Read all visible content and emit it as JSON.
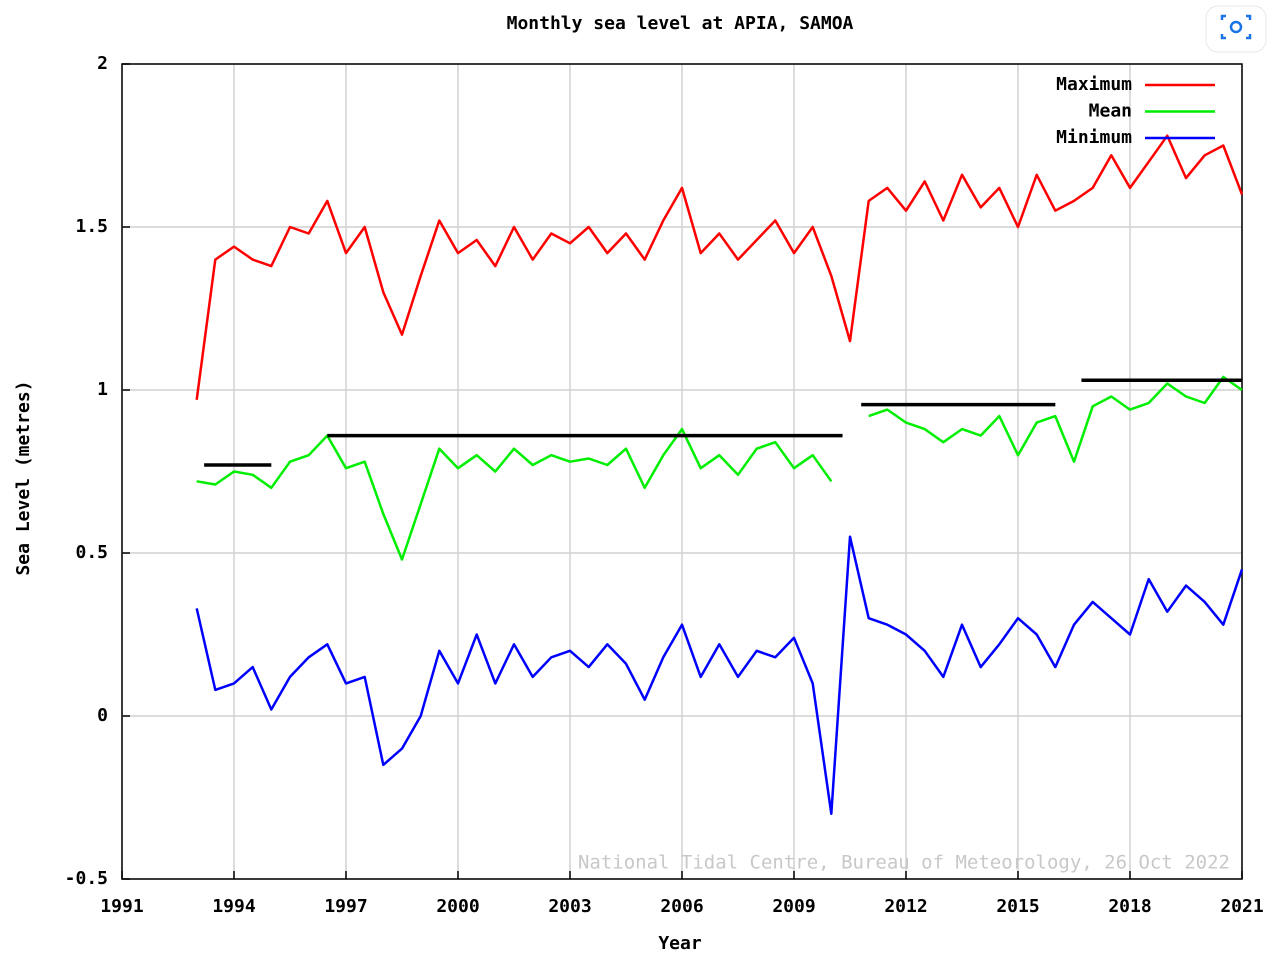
{
  "chart_data": {
    "type": "line",
    "title": "Monthly sea level at APIA, SAMOA",
    "xlabel": "Year",
    "ylabel": "Sea Level (metres)",
    "annotation": "National Tidal Centre, Bureau of Meteorology, 26 Oct 2022",
    "xlim": [
      1991,
      2021
    ],
    "xticks": [
      1991,
      1994,
      1997,
      2000,
      2003,
      2006,
      2009,
      2012,
      2015,
      2018,
      2021
    ],
    "ylim": [
      -0.5,
      2
    ],
    "yticks": [
      -0.5,
      0,
      0.5,
      1,
      1.5,
      2
    ],
    "grid": true,
    "legend": "upper right",
    "x": [
      1993.0,
      1993.5,
      1994.0,
      1994.5,
      1995.0,
      1995.5,
      1996.0,
      1996.5,
      1997.0,
      1997.5,
      1998.0,
      1998.5,
      1999.0,
      1999.5,
      2000.0,
      2000.5,
      2001.0,
      2001.5,
      2002.0,
      2002.5,
      2003.0,
      2003.5,
      2004.0,
      2004.5,
      2005.0,
      2005.5,
      2006.0,
      2006.5,
      2007.0,
      2007.5,
      2008.0,
      2008.5,
      2009.0,
      2009.5,
      2010.0,
      2010.5,
      2011.0,
      2011.5,
      2012.0,
      2012.5,
      2013.0,
      2013.5,
      2014.0,
      2014.5,
      2015.0,
      2015.5,
      2016.0,
      2016.5,
      2017.0,
      2017.5,
      2018.0,
      2018.5,
      2019.0,
      2019.5,
      2020.0,
      2020.5,
      2021.0
    ],
    "series": [
      {
        "name": "Maximum",
        "color": "#ff0000",
        "values": [
          0.97,
          1.4,
          1.44,
          1.4,
          1.38,
          1.5,
          1.48,
          1.58,
          1.42,
          1.5,
          1.3,
          1.17,
          1.35,
          1.52,
          1.42,
          1.46,
          1.38,
          1.5,
          1.4,
          1.48,
          1.45,
          1.5,
          1.42,
          1.48,
          1.4,
          1.52,
          1.62,
          1.42,
          1.48,
          1.4,
          1.46,
          1.52,
          1.42,
          1.5,
          1.35,
          1.15,
          1.58,
          1.62,
          1.55,
          1.64,
          1.52,
          1.66,
          1.56,
          1.62,
          1.5,
          1.66,
          1.55,
          1.58,
          1.62,
          1.72,
          1.62,
          1.7,
          1.78,
          1.65,
          1.72,
          1.75,
          1.6
        ]
      },
      {
        "name": "Mean",
        "color": "#00ee00",
        "values": [
          0.72,
          0.71,
          0.75,
          0.74,
          0.7,
          0.78,
          0.8,
          0.86,
          0.76,
          0.78,
          0.62,
          0.48,
          0.65,
          0.82,
          0.76,
          0.8,
          0.75,
          0.82,
          0.77,
          0.8,
          0.78,
          0.79,
          0.77,
          0.82,
          0.7,
          0.8,
          0.88,
          0.76,
          0.8,
          0.74,
          0.82,
          0.84,
          0.76,
          0.8,
          0.72,
          null,
          0.92,
          0.94,
          0.9,
          0.88,
          0.84,
          0.88,
          0.86,
          0.92,
          0.8,
          0.9,
          0.92,
          0.78,
          0.95,
          0.98,
          0.94,
          0.96,
          1.02,
          0.98,
          0.96,
          1.04,
          1.0
        ]
      },
      {
        "name": "Minimum",
        "color": "#0000ff",
        "values": [
          0.33,
          0.08,
          0.1,
          0.15,
          0.02,
          0.12,
          0.18,
          0.22,
          0.1,
          0.12,
          -0.15,
          -0.1,
          0.0,
          0.2,
          0.1,
          0.25,
          0.1,
          0.22,
          0.12,
          0.18,
          0.2,
          0.15,
          0.22,
          0.16,
          0.05,
          0.18,
          0.28,
          0.12,
          0.22,
          0.12,
          0.2,
          0.18,
          0.24,
          0.1,
          -0.3,
          0.55,
          0.3,
          0.28,
          0.25,
          0.2,
          0.12,
          0.28,
          0.15,
          0.22,
          0.3,
          0.25,
          0.15,
          0.28,
          0.35,
          0.3,
          0.25,
          0.42,
          0.32,
          0.4,
          0.35,
          0.28,
          0.45
        ]
      }
    ],
    "reference_lines": [
      {
        "x0": 1993.2,
        "x1": 1995.0,
        "value": 0.77
      },
      {
        "x0": 1996.5,
        "x1": 2010.3,
        "value": 0.86
      },
      {
        "x0": 2010.8,
        "x1": 2016.0,
        "value": 0.955
      },
      {
        "x0": 2016.7,
        "x1": 2021.0,
        "value": 1.03
      }
    ],
    "reference_color": "#000000"
  }
}
